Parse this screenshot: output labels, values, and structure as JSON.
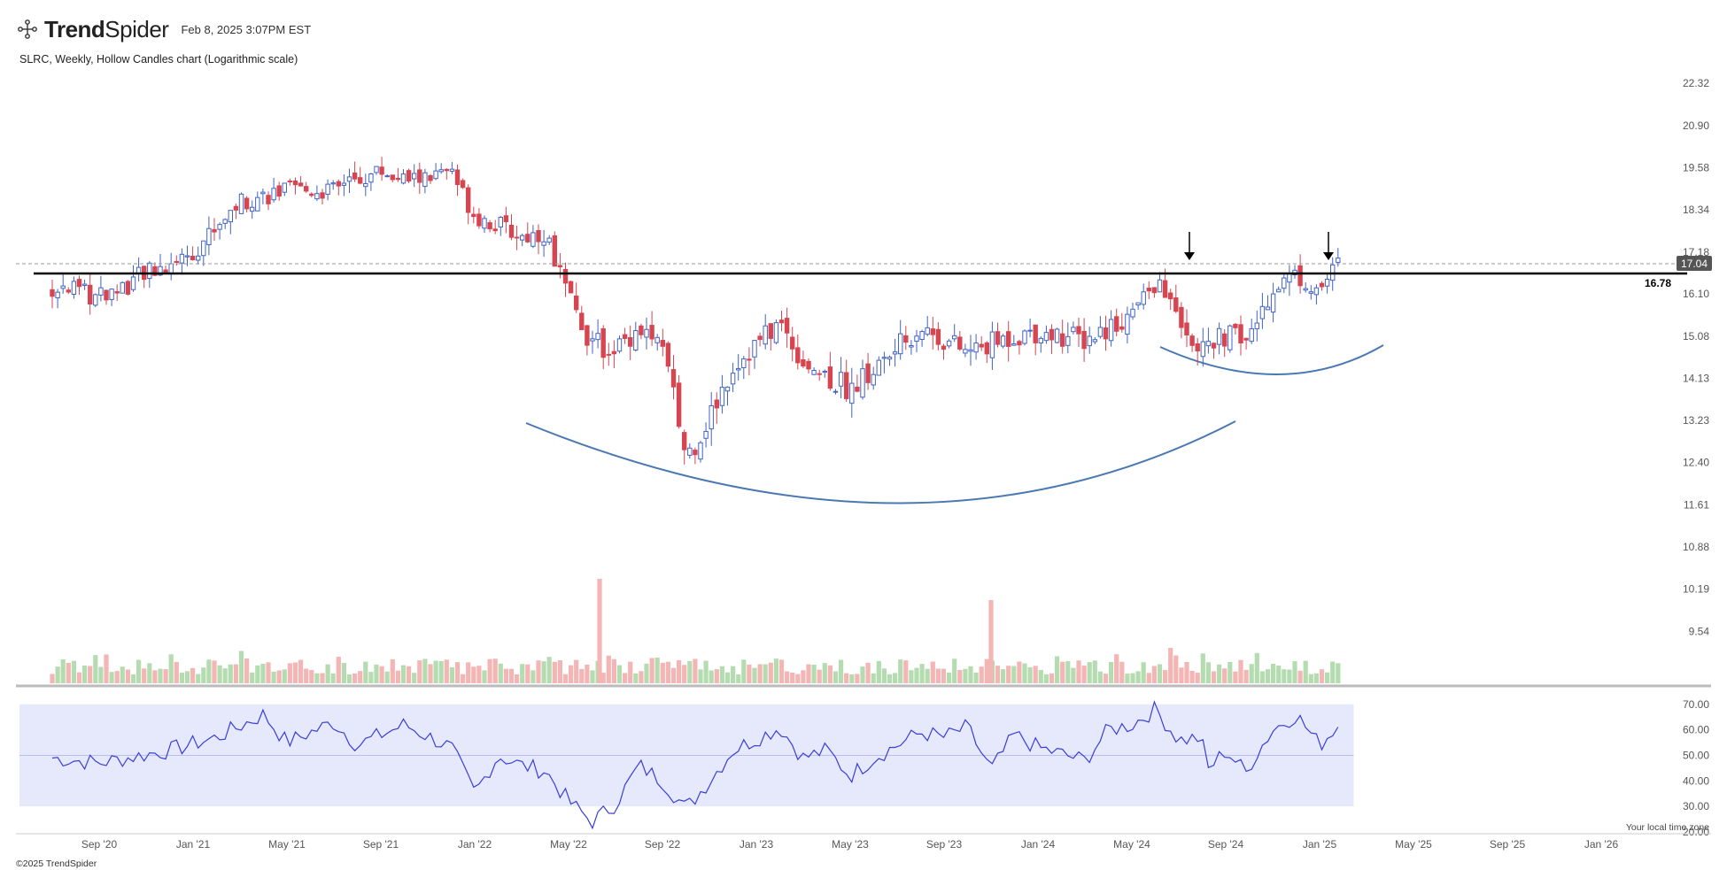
{
  "header": {
    "brand_bold": "Trend",
    "brand_light": "Spider",
    "timestamp": "Feb 8, 2025 3:07PM EST"
  },
  "subtitle": "SLRC, Weekly, Hollow Candles chart (Logarithmic scale)",
  "footer": {
    "copyright": "©2025 TrendSpider",
    "timezone_note": "Your local time zone"
  },
  "colors": {
    "up": "#3f63c9",
    "down": "#d64550",
    "volume_up": "#b5dcb0",
    "volume_down": "#f4b5b5",
    "rsi_line": "#3a3ed8",
    "rsi_band": "#e6e9fb",
    "arc": "#4a79b2",
    "resistance": "#000000",
    "last_price_tag": "#555555"
  },
  "chart_data": {
    "type": "candlestick",
    "symbol": "SLRC",
    "interval": "Weekly",
    "style": "Hollow Candles",
    "scale": "log",
    "x_ticks": [
      "Sep '20",
      "Jan '21",
      "May '21",
      "Sep '21",
      "Jan '22",
      "May '22",
      "Sep '22",
      "Jan '23",
      "May '23",
      "Sep '23",
      "Jan '24",
      "May '24",
      "Sep '24",
      "Jan '25",
      "May '25",
      "Sep '25",
      "Jan '26"
    ],
    "y_ticks": [
      "22.32",
      "20.90",
      "19.58",
      "18.34",
      "17.18",
      "16.10",
      "15.08",
      "14.13",
      "13.23",
      "12.40",
      "11.61",
      "10.88",
      "10.19",
      "9.54"
    ],
    "ylim": [
      9.2,
      22.6
    ],
    "resistance_level": "16.78",
    "last_price": "17.04",
    "arrow_annotations": [
      "Jun '24",
      "Dec '24"
    ],
    "price_path_anchors": [
      {
        "x": "Jul '20",
        "close": 16.3
      },
      {
        "x": "Sep '20",
        "close": 16.0
      },
      {
        "x": "Jan '21",
        "close": 17.2
      },
      {
        "x": "Mar '21",
        "close": 18.6
      },
      {
        "x": "May '21",
        "close": 18.9
      },
      {
        "x": "Jul '21",
        "close": 18.9
      },
      {
        "x": "Sep '21",
        "close": 19.5
      },
      {
        "x": "Oct '21",
        "close": 19.2
      },
      {
        "x": "Dec '21",
        "close": 19.4
      },
      {
        "x": "Jan '22",
        "close": 18.2
      },
      {
        "x": "Mar '22",
        "close": 17.6
      },
      {
        "x": "Apr '22",
        "close": 17.7
      },
      {
        "x": "May '22",
        "close": 16.0
      },
      {
        "x": "Jun '22",
        "close": 14.9
      },
      {
        "x": "Jul '22",
        "close": 14.8
      },
      {
        "x": "Aug '22",
        "close": 15.3
      },
      {
        "x": "Sep '22",
        "close": 14.8
      },
      {
        "x": "Oct '22",
        "close": 12.5
      },
      {
        "x": "Nov '22",
        "close": 13.3
      },
      {
        "x": "Dec '22",
        "close": 14.4
      },
      {
        "x": "Feb '23",
        "close": 15.4
      },
      {
        "x": "Mar '23",
        "close": 14.5
      },
      {
        "x": "May '23",
        "close": 13.9
      },
      {
        "x": "Jun '23",
        "close": 14.3
      },
      {
        "x": "Aug '23",
        "close": 15.3
      },
      {
        "x": "Oct '23",
        "close": 14.7
      },
      {
        "x": "Dec '23",
        "close": 15.1
      },
      {
        "x": "Jan '24",
        "close": 15.2
      },
      {
        "x": "Mar '24",
        "close": 15.0
      },
      {
        "x": "May '24",
        "close": 15.6
      },
      {
        "x": "Jun '24",
        "close": 16.4
      },
      {
        "x": "Jul '24",
        "close": 15.6
      },
      {
        "x": "Aug '24",
        "close": 14.7
      },
      {
        "x": "Sep '24",
        "close": 15.1
      },
      {
        "x": "Oct '24",
        "close": 15.0
      },
      {
        "x": "Nov '24",
        "close": 16.3
      },
      {
        "x": "Dec '24",
        "close": 16.6
      },
      {
        "x": "Jan '25",
        "close": 16.2
      },
      {
        "x": "Feb '25",
        "close": 17.04
      }
    ],
    "volume": {
      "peaks": [
        "May '22",
        "Nov '23"
      ]
    },
    "rsi": {
      "y_ticks": [
        "70.00",
        "60.00",
        "50.00",
        "40.00",
        "30.00",
        "20.00"
      ],
      "ylim": [
        20,
        72
      ],
      "band": [
        30,
        70
      ],
      "midline": 50,
      "anchors": [
        {
          "x": "Jul '20",
          "value": 49
        },
        {
          "x": "Sep '20",
          "value": 47
        },
        {
          "x": "Dec '20",
          "value": 52
        },
        {
          "x": "Feb '21",
          "value": 57
        },
        {
          "x": "Apr '21",
          "value": 66
        },
        {
          "x": "May '21",
          "value": 55
        },
        {
          "x": "Jul '21",
          "value": 63
        },
        {
          "x": "Aug '21",
          "value": 54
        },
        {
          "x": "Oct '21",
          "value": 62
        },
        {
          "x": "Dec '21",
          "value": 53
        },
        {
          "x": "Jan '22",
          "value": 35
        },
        {
          "x": "Feb '22",
          "value": 50
        },
        {
          "x": "Mar '22",
          "value": 46
        },
        {
          "x": "Apr '22",
          "value": 44
        },
        {
          "x": "May '22",
          "value": 32
        },
        {
          "x": "Jun '22",
          "value": 24
        },
        {
          "x": "Jul '22",
          "value": 31
        },
        {
          "x": "Aug '22",
          "value": 46
        },
        {
          "x": "Sep '22",
          "value": 40
        },
        {
          "x": "Oct '22",
          "value": 29
        },
        {
          "x": "Nov '22",
          "value": 40
        },
        {
          "x": "Dec '22",
          "value": 52
        },
        {
          "x": "Feb '23",
          "value": 61
        },
        {
          "x": "Mar '23",
          "value": 49
        },
        {
          "x": "Apr '23",
          "value": 52
        },
        {
          "x": "May '23",
          "value": 42
        },
        {
          "x": "Jun '23",
          "value": 49
        },
        {
          "x": "Aug '23",
          "value": 59
        },
        {
          "x": "Sep '23",
          "value": 57
        },
        {
          "x": "Oct '23",
          "value": 61
        },
        {
          "x": "Nov '23",
          "value": 44
        },
        {
          "x": "Dec '23",
          "value": 58
        },
        {
          "x": "Jan '24",
          "value": 53
        },
        {
          "x": "Mar '24",
          "value": 48
        },
        {
          "x": "Apr '24",
          "value": 60
        },
        {
          "x": "May '24",
          "value": 62
        },
        {
          "x": "Jun '24",
          "value": 68
        },
        {
          "x": "Jul '24",
          "value": 56
        },
        {
          "x": "Aug '24",
          "value": 57
        },
        {
          "x": "Aug '24",
          "value": 43
        },
        {
          "x": "Sep '24",
          "value": 52
        },
        {
          "x": "Oct '24",
          "value": 42
        },
        {
          "x": "Oct '24",
          "value": 48
        },
        {
          "x": "Nov '24",
          "value": 60
        },
        {
          "x": "Dec '24",
          "value": 66
        },
        {
          "x": "Jan '25",
          "value": 54
        },
        {
          "x": "Feb '25",
          "value": 64
        }
      ]
    }
  }
}
